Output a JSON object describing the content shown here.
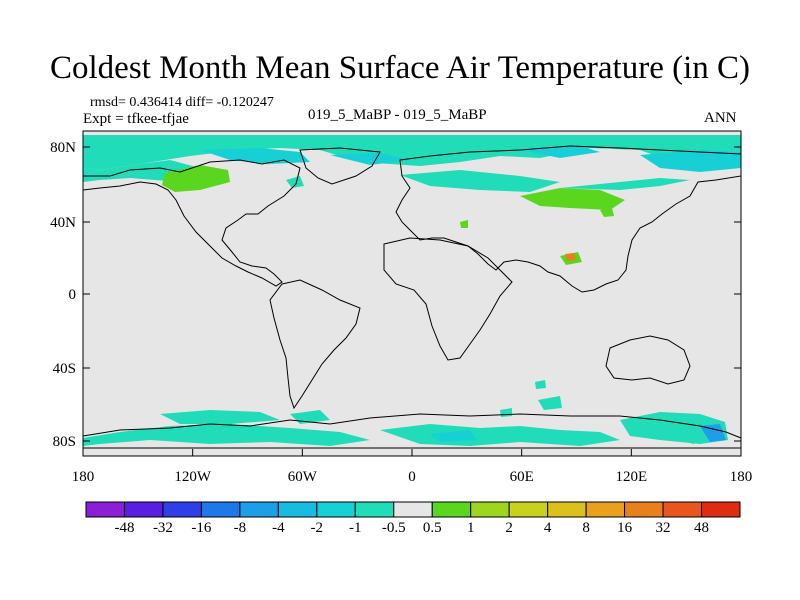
{
  "title": "Coldest Month Mean Surface Air Temperature (in C)",
  "stats_line": "rmsd= 0.436414  diff= -0.120247",
  "expt_line": "Expt = tfkee-tfjae",
  "case_line": "019_5_MaBP - 019_5_MaBP",
  "season": "ANN",
  "y_ticks": [
    "80N",
    "40N",
    "0",
    "40S",
    "80S"
  ],
  "x_ticks": [
    "180",
    "120W",
    "60W",
    "0",
    "60E",
    "120E",
    "180"
  ],
  "colorbar": {
    "colors": [
      "#8a1fd6",
      "#5a1ee0",
      "#2f3fe8",
      "#1f78e8",
      "#1f9ee8",
      "#18bce0",
      "#16d0d6",
      "#20dcb8",
      "#e6e6e6",
      "#5ad61e",
      "#9ed61e",
      "#c8d21e",
      "#dcc01e",
      "#e8a01e",
      "#e8801e",
      "#e8561e",
      "#e02a12"
    ],
    "labels": [
      "-48",
      "-32",
      "-16",
      "-8",
      "-4",
      "-2",
      "-1",
      "-0.5",
      "0.5",
      "1",
      "2",
      "4",
      "8",
      "16",
      "32",
      "48"
    ]
  },
  "colors": {
    "map_background": "#e6e6e6",
    "band_teal": "#20dcb8",
    "band_cyan": "#16d0d6",
    "band_blue": "#1f9ee8",
    "patch_green": "#5ad61e",
    "patch_orange": "#e8801e",
    "coastline": "#000000"
  }
}
